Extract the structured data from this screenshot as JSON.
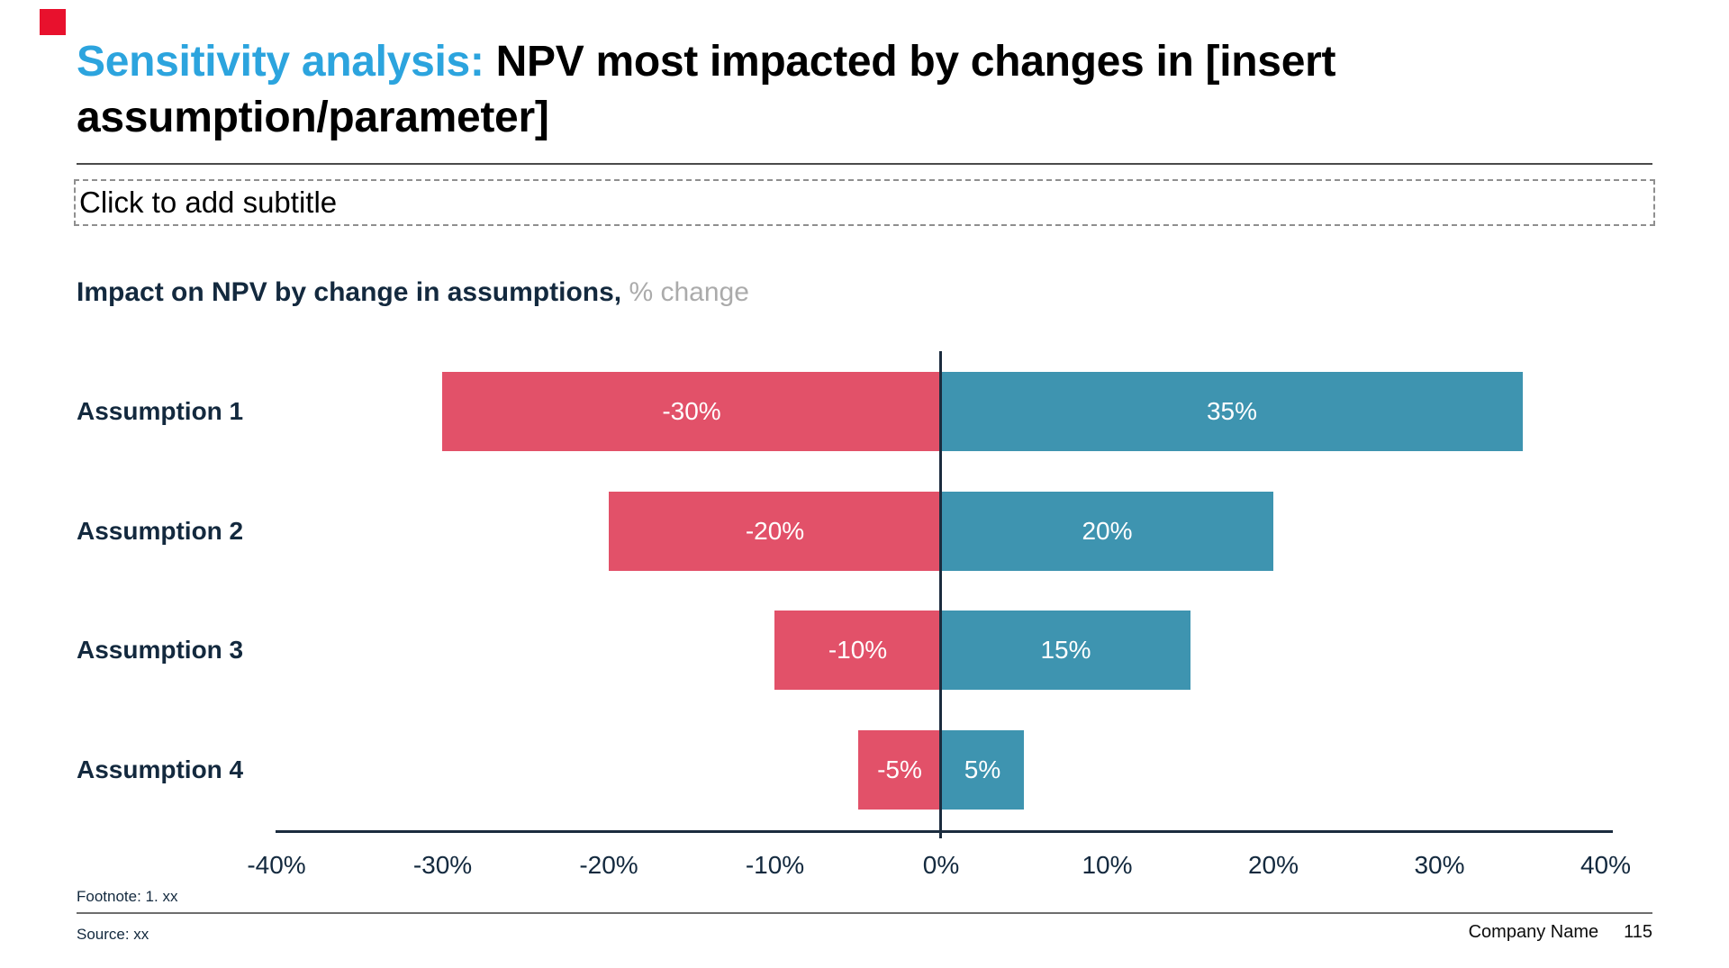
{
  "slide": {
    "accent_color": "#e8112d",
    "title": {
      "highlight": "Sensitivity analysis: ",
      "rest": "NPV most impacted by changes in [insert assumption/parameter]",
      "highlight_color": "#2ca4de"
    },
    "subtitle_placeholder": "Click to add subtitle",
    "chart_heading": {
      "bold": "Impact on NPV by change in assumptions,",
      "light": " % change"
    },
    "footnote": "Footnote: 1. xx",
    "source": "Source: xx",
    "footer_company": "Company Name",
    "footer_page": "115"
  },
  "chart_data": {
    "type": "bar",
    "orientation": "horizontal-diverging",
    "title": "Impact on NPV by change in assumptions, % change",
    "categories": [
      "Assumption 1",
      "Assumption 2",
      "Assumption 3",
      "Assumption 4"
    ],
    "series": [
      {
        "name": "negative-change",
        "color": "#e25169",
        "values": [
          -30,
          -20,
          -10,
          -5
        ],
        "labels": [
          "-30%",
          "-20%",
          "-10%",
          "-5%"
        ]
      },
      {
        "name": "positive-change",
        "color": "#3e94b0",
        "values": [
          35,
          20,
          15,
          5
        ],
        "labels": [
          "35%",
          "20%",
          "15%",
          "5%"
        ]
      }
    ],
    "xlabel": "",
    "ylabel": "",
    "xlim": [
      -40,
      40
    ],
    "x_tick_values": [
      -40,
      -30,
      -20,
      -10,
      0,
      10,
      20,
      30,
      40
    ],
    "x_tick_labels": [
      "-40%",
      "-30%",
      "-20%",
      "-10%",
      "0%",
      "10%",
      "20%",
      "30%",
      "40%"
    ],
    "grid": false,
    "legend": false,
    "value_labels_inside_bars": true
  }
}
